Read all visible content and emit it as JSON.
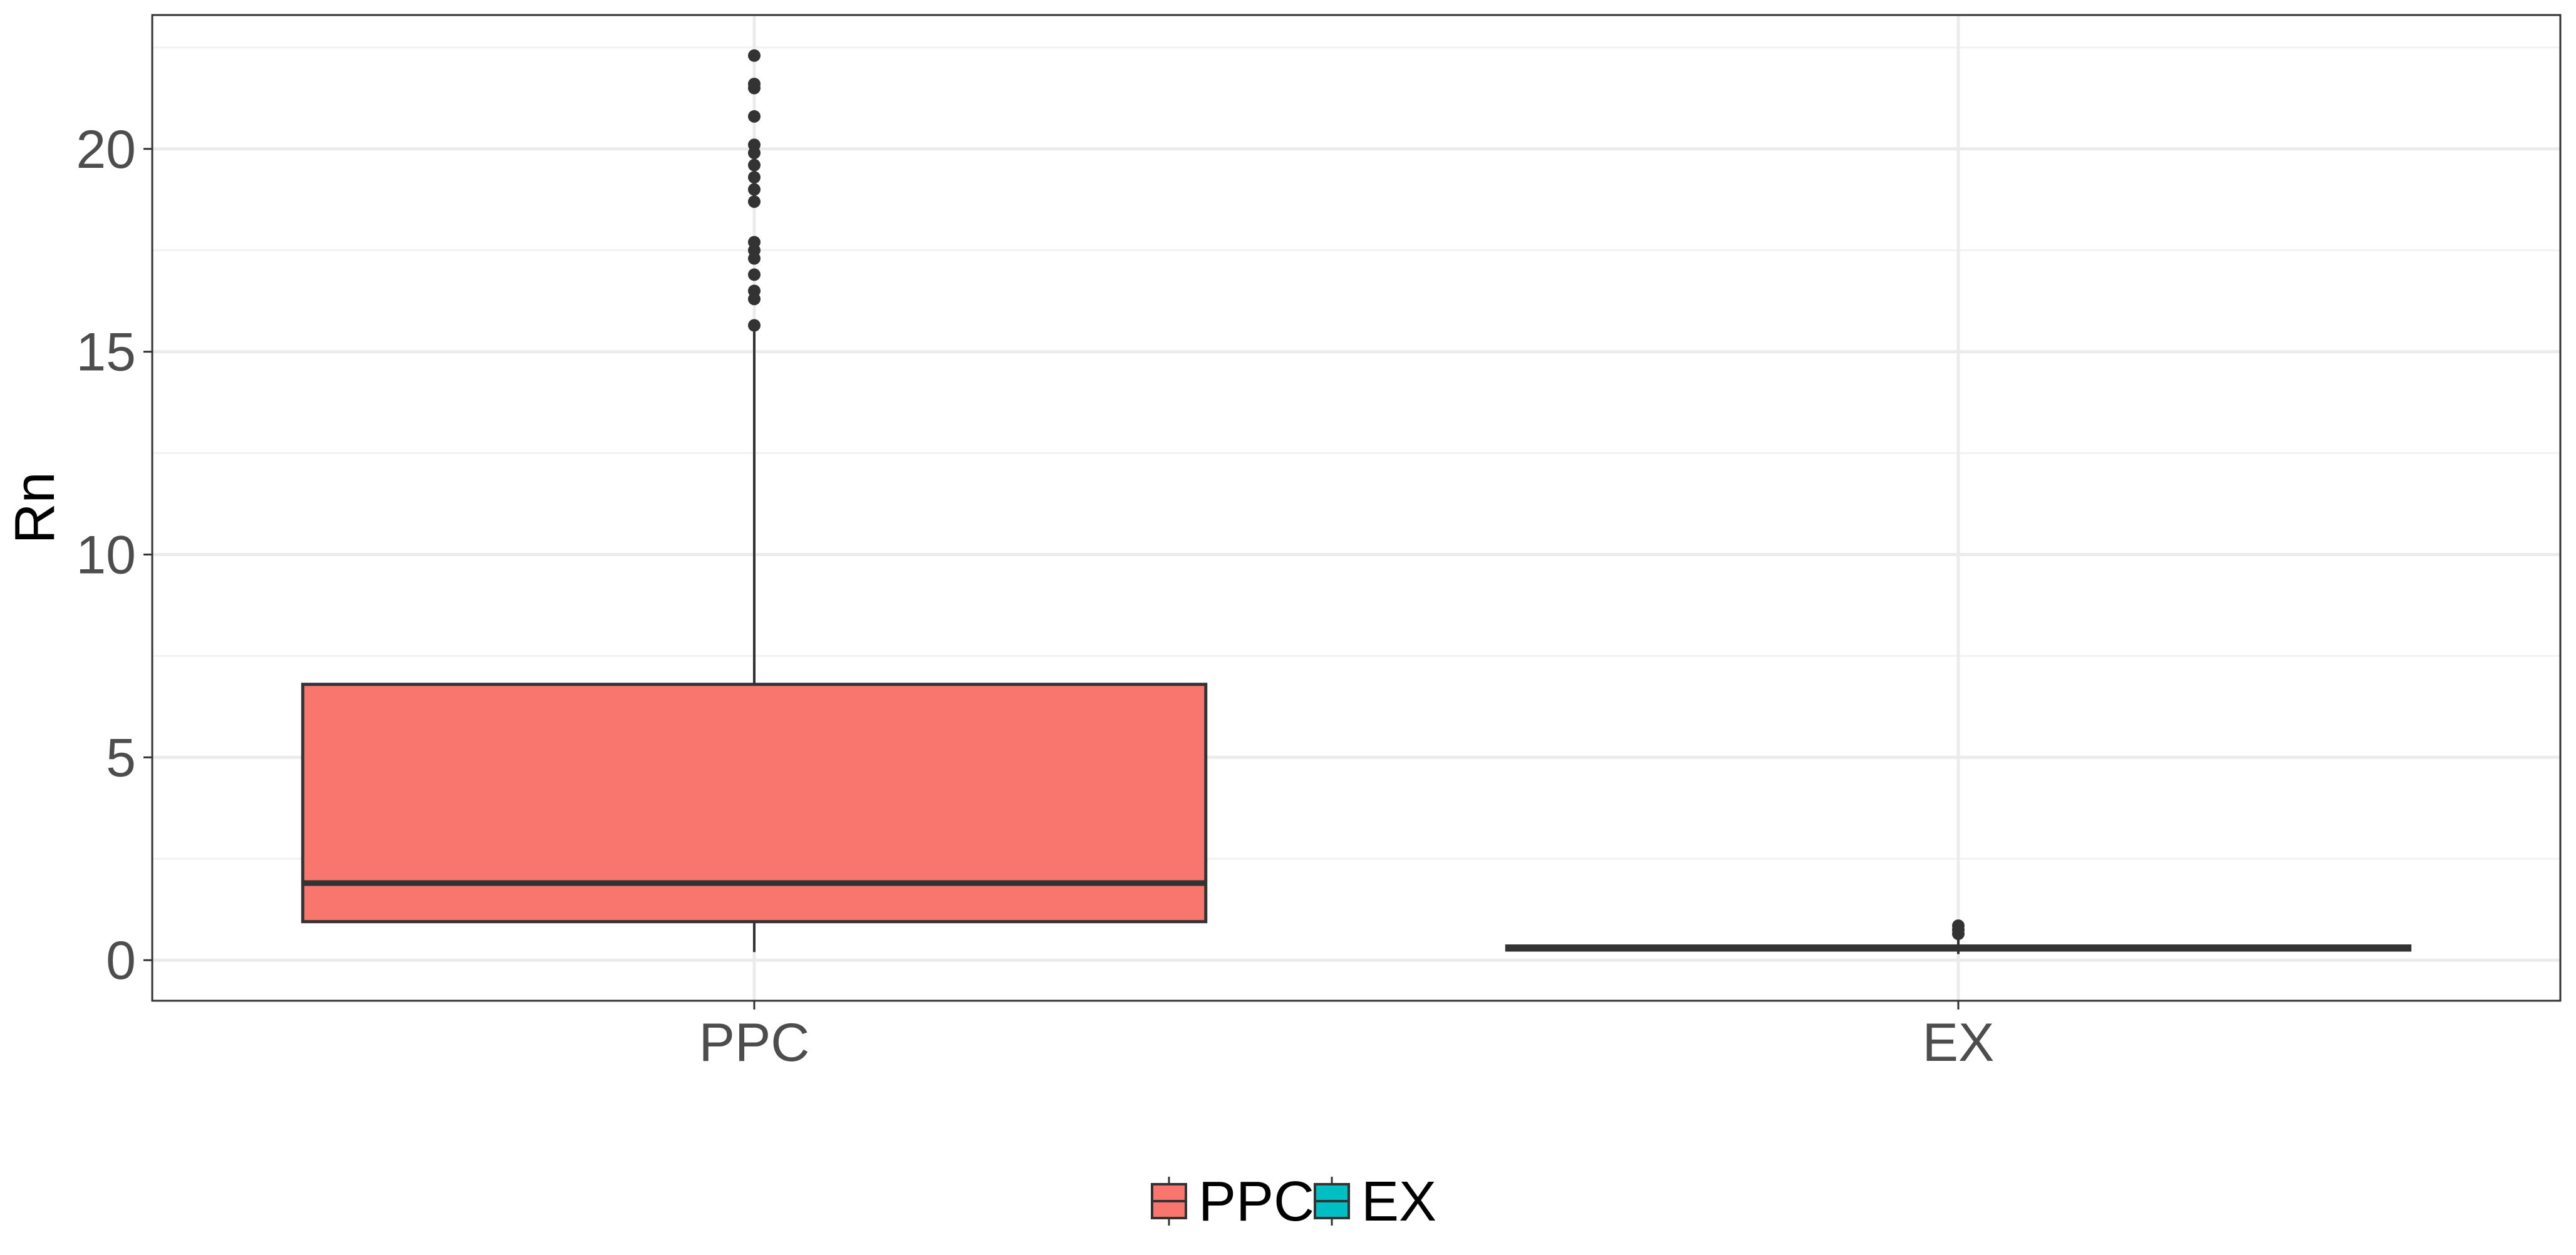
{
  "chart_data": {
    "type": "boxplot",
    "title": "",
    "xlabel": "",
    "ylabel": "Rn",
    "ylim": [
      -1,
      23.3
    ],
    "yticks": [
      0,
      5,
      10,
      15,
      20
    ],
    "grid": true,
    "legend_position": "bottom",
    "categories": [
      "PPC",
      "EX"
    ],
    "series": [
      {
        "name": "PPC",
        "color": "#F8766D",
        "whisker_low": 0.2,
        "q1": 0.95,
        "median": 1.9,
        "q3": 6.8,
        "whisker_high": 15.5,
        "outliers": [
          15.65,
          16.3,
          16.5,
          16.9,
          17.3,
          17.5,
          17.7,
          18.7,
          19.0,
          19.3,
          19.6,
          19.9,
          20.1,
          20.8,
          21.5,
          21.6,
          22.3
        ]
      },
      {
        "name": "EX",
        "color": "#00BFC4",
        "whisker_low": 0.15,
        "q1": 0.25,
        "median": 0.3,
        "q3": 0.35,
        "whisker_high": 0.5,
        "outliers": [
          0.65,
          0.75,
          0.85
        ]
      }
    ]
  }
}
